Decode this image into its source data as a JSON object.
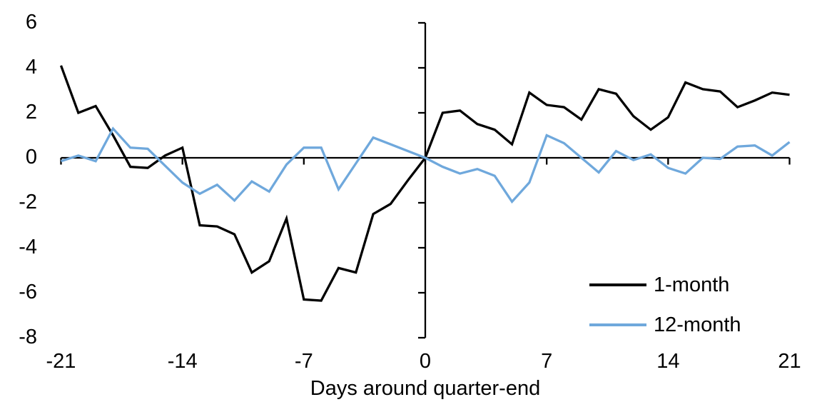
{
  "chart_data": {
    "type": "line",
    "title": "",
    "xlabel": "Days around quarter-end",
    "ylabel": "",
    "xlim": [
      -21,
      21
    ],
    "ylim": [
      -8,
      6
    ],
    "x_ticks": [
      -21,
      -14,
      -7,
      0,
      7,
      14,
      21
    ],
    "y_ticks": [
      6,
      4,
      2,
      0,
      -2,
      -4,
      -6,
      -8
    ],
    "grid": "off",
    "legend_position": "lower-right",
    "axis_color": "#000000",
    "x": [
      -21,
      -20,
      -19,
      -18,
      -17,
      -16,
      -15,
      -14,
      -13,
      -12,
      -11,
      -10,
      -9,
      -8,
      -7,
      -6,
      -5,
      -4,
      -3,
      -2,
      -1,
      0,
      1,
      2,
      3,
      4,
      5,
      6,
      7,
      8,
      9,
      10,
      11,
      12,
      13,
      14,
      15,
      16,
      17,
      18,
      19,
      20,
      21
    ],
    "series": [
      {
        "name": "1-month",
        "color": "#000000",
        "values": [
          4.1,
          2.0,
          2.3,
          1.0,
          -0.4,
          -0.45,
          0.1,
          0.45,
          -3.0,
          -3.05,
          -3.4,
          -5.1,
          -4.6,
          -2.7,
          -6.3,
          -6.35,
          -4.9,
          -5.1,
          -2.5,
          -2.05,
          -1.0,
          0.0,
          2.0,
          2.1,
          1.5,
          1.25,
          0.6,
          2.9,
          2.35,
          2.25,
          1.7,
          3.05,
          2.85,
          1.85,
          1.25,
          1.8,
          3.35,
          3.05,
          2.95,
          2.25,
          2.55,
          2.9,
          2.8
        ]
      },
      {
        "name": "12-month",
        "color": "#6FA8DC",
        "values": [
          -0.15,
          0.1,
          -0.15,
          1.3,
          0.45,
          0.4,
          -0.35,
          -1.1,
          -1.6,
          -1.2,
          -1.9,
          -1.05,
          -1.5,
          -0.3,
          0.45,
          0.45,
          -1.4,
          -0.25,
          0.9,
          0.6,
          0.3,
          0.0,
          -0.4,
          -0.7,
          -0.5,
          -0.8,
          -1.95,
          -1.1,
          1.0,
          0.65,
          0.0,
          -0.65,
          0.3,
          -0.1,
          0.15,
          -0.45,
          -0.7,
          0.0,
          -0.05,
          0.5,
          0.55,
          0.1,
          0.7
        ]
      }
    ]
  }
}
